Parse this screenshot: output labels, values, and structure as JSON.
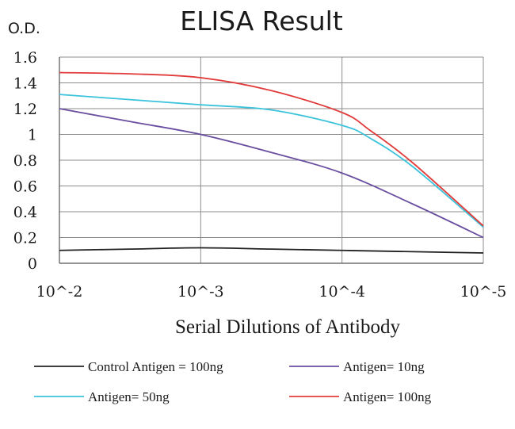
{
  "chart_data": {
    "type": "line",
    "title": "ELISA Result",
    "ylabel": "O.D.",
    "xlabel": "Serial  Dilutions  of Antibody",
    "categories": [
      "10^-2",
      "10^-3",
      "10^-4",
      "10^-5"
    ],
    "x": [
      -2,
      -3,
      -4,
      -5
    ],
    "ylim": [
      0,
      1.6
    ],
    "yticks": [
      "0",
      "0.2",
      "0.4",
      "0.6",
      "0.8",
      "1",
      "1.2",
      "1.4",
      "1.6"
    ],
    "grid": true,
    "legend_position": "bottom",
    "series": [
      {
        "name": "Control Antigen = 100ng",
        "color": "#222222",
        "x": [
          -2,
          -2.5,
          -3,
          -3.5,
          -4,
          -4.5,
          -5
        ],
        "values": [
          0.1,
          0.11,
          0.12,
          0.11,
          0.1,
          0.09,
          0.08
        ]
      },
      {
        "name": "Antigen= 10ng",
        "color": "#6a4fa0",
        "x": [
          -2,
          -2.5,
          -3,
          -3.5,
          -4,
          -4.5,
          -5
        ],
        "values": [
          1.2,
          1.1,
          1.0,
          0.86,
          0.7,
          0.46,
          0.2
        ]
      },
      {
        "name": "Antigen= 50ng",
        "color": "#3cc3dc",
        "x": [
          -2,
          -2.5,
          -3,
          -3.5,
          -4,
          -4.2,
          -4.5,
          -5
        ],
        "values": [
          1.31,
          1.27,
          1.23,
          1.19,
          1.07,
          0.97,
          0.75,
          0.28
        ]
      },
      {
        "name": "Antigen= 100ng",
        "color": "#e23b3b",
        "x": [
          -2,
          -2.5,
          -3,
          -3.5,
          -4,
          -4.2,
          -4.5,
          -5
        ],
        "values": [
          1.48,
          1.47,
          1.44,
          1.34,
          1.17,
          1.03,
          0.78,
          0.29
        ]
      }
    ]
  }
}
